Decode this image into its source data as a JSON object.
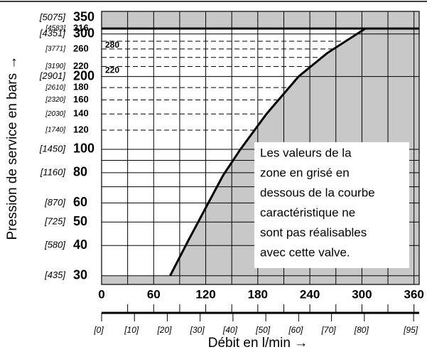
{
  "chart_data": {
    "type": "line",
    "y_label": "Pression de service en bars →",
    "x_label": "Débit en l/min →",
    "annotation": [
      "Les valeurs de la",
      "zone en grisé en",
      "dessous de la courbe",
      "caractéristique ne",
      "sont pas réalisables",
      "avec cette valve."
    ],
    "x": [
      79,
      100,
      123,
      140,
      160,
      190,
      227,
      260,
      304
    ],
    "series": [
      {
        "color": "#000000",
        "values": [
          30,
          42,
          60,
          78,
          100,
          140,
          200,
          250,
          316
        ]
      }
    ],
    "xlim": [
      0,
      366
    ],
    "xticks": [
      0,
      60,
      120,
      180,
      240,
      300,
      360
    ],
    "grid_x": [
      30,
      60,
      90,
      120,
      150,
      180,
      210,
      240,
      270,
      300,
      330,
      360
    ],
    "x2lim": [
      0,
      96.7
    ],
    "x2ticks": [
      {
        "value": 0,
        "label": "[0]"
      },
      {
        "value": 10,
        "label": "[10]"
      },
      {
        "value": 20,
        "label": "[20]"
      },
      {
        "value": 30,
        "label": "[30]"
      },
      {
        "value": 40,
        "label": "[40]"
      },
      {
        "value": 50,
        "label": "[50]"
      },
      {
        "value": 60,
        "label": "[60]"
      },
      {
        "value": 70,
        "label": "[70]"
      },
      {
        "value": 80,
        "label": "[80]"
      },
      {
        "value": 95,
        "label": "[95]"
      }
    ],
    "ylim": [
      27.6,
      372
    ],
    "log_y": true,
    "yticks": [
      350,
      316,
      300,
      260,
      220,
      200,
      180,
      160,
      140,
      120,
      100,
      80,
      60,
      50,
      40,
      30
    ],
    "y2ticks": [
      {
        "value": 350,
        "label": "[5075]"
      },
      {
        "value": 316,
        "label": "[4583]"
      },
      {
        "value": 300,
        "label": "[4351]"
      },
      {
        "value": 260,
        "label": "[3771]"
      },
      {
        "value": 220,
        "label": "[3190]"
      },
      {
        "value": 200,
        "label": "[2901]"
      },
      {
        "value": 180,
        "label": "[2610]"
      },
      {
        "value": 160,
        "label": "[2320]"
      },
      {
        "value": 140,
        "label": "[2030]"
      },
      {
        "value": 120,
        "label": "[1740]"
      },
      {
        "value": 100,
        "label": "[1450]"
      },
      {
        "value": 80,
        "label": "[1160]"
      },
      {
        "value": 60,
        "label": "[870]"
      },
      {
        "value": 50,
        "label": "[725]"
      },
      {
        "value": 40,
        "label": "[580]"
      },
      {
        "value": 30,
        "label": "[435]"
      }
    ],
    "grid_solid": [
      30,
      40,
      50,
      60,
      70,
      80,
      90,
      100,
      200,
      300
    ],
    "grid_dashed": [
      120,
      140,
      160,
      180,
      220,
      240,
      260,
      280
    ],
    "max_line": 316,
    "inner_labels": [
      280,
      220
    ],
    "shade_color": "#c8c8c8"
  }
}
